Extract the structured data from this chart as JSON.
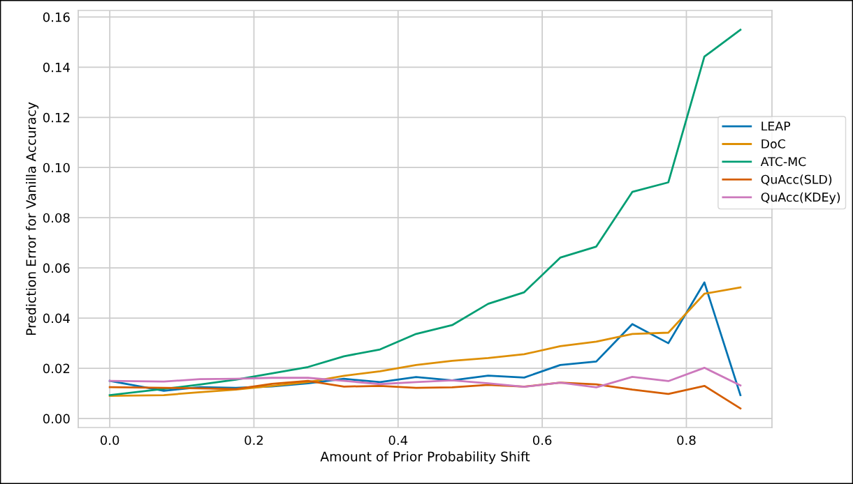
{
  "chart_data": {
    "type": "line",
    "xlabel": "Amount of Prior Probability Shift",
    "ylabel": "Prediction Error for Vanilla Accuracy",
    "x": [
      0.0,
      0.075,
      0.125,
      0.175,
      0.225,
      0.275,
      0.325,
      0.375,
      0.425,
      0.475,
      0.525,
      0.575,
      0.625,
      0.675,
      0.725,
      0.775,
      0.825,
      0.875
    ],
    "series": [
      {
        "name": "LEAP",
        "color": "#0173b2",
        "values": [
          0.015,
          0.011,
          0.0125,
          0.0122,
          0.0128,
          0.014,
          0.0158,
          0.0145,
          0.0165,
          0.0152,
          0.0171,
          0.0163,
          0.0213,
          0.0227,
          0.0376,
          0.03,
          0.0542,
          0.0093
        ]
      },
      {
        "name": "DoC",
        "color": "#de8f05",
        "values": [
          0.009,
          0.0093,
          0.0105,
          0.0115,
          0.013,
          0.0145,
          0.017,
          0.0188,
          0.0213,
          0.023,
          0.0241,
          0.0256,
          0.0288,
          0.0306,
          0.0337,
          0.0342,
          0.0497,
          0.0522
        ]
      },
      {
        "name": "ATC-MC",
        "color": "#029e73",
        "values": [
          0.0093,
          0.0118,
          0.0135,
          0.0155,
          0.018,
          0.0205,
          0.0248,
          0.0275,
          0.0337,
          0.0372,
          0.0457,
          0.0503,
          0.0641,
          0.0685,
          0.0903,
          0.0941,
          0.1442,
          0.1549
        ]
      },
      {
        "name": "QuAcc(SLD)",
        "color": "#d55e00",
        "values": [
          0.0125,
          0.0122,
          0.012,
          0.0117,
          0.0138,
          0.015,
          0.0127,
          0.013,
          0.0122,
          0.0124,
          0.0134,
          0.0127,
          0.0143,
          0.0136,
          0.0115,
          0.0098,
          0.013,
          0.004
        ]
      },
      {
        "name": "QuAcc(KDEy)",
        "color": "#cc78bc",
        "values": [
          0.015,
          0.0147,
          0.0157,
          0.0158,
          0.0162,
          0.0162,
          0.015,
          0.0137,
          0.0145,
          0.0152,
          0.014,
          0.0126,
          0.0143,
          0.0124,
          0.0166,
          0.0149,
          0.0202,
          0.0132
        ]
      }
    ],
    "xlim": [
      -0.04375,
      0.91875
    ],
    "ylim": [
      -0.0036,
      0.1626
    ],
    "xticks": [
      {
        "value": 0.0,
        "label": "0.0"
      },
      {
        "value": 0.2,
        "label": "0.2"
      },
      {
        "value": 0.4,
        "label": "0.4"
      },
      {
        "value": 0.6,
        "label": "0.6"
      },
      {
        "value": 0.8,
        "label": "0.8"
      }
    ],
    "yticks": [
      {
        "value": 0.0,
        "label": "0.00"
      },
      {
        "value": 0.02,
        "label": "0.02"
      },
      {
        "value": 0.04,
        "label": "0.04"
      },
      {
        "value": 0.06,
        "label": "0.06"
      },
      {
        "value": 0.08,
        "label": "0.08"
      },
      {
        "value": 0.1,
        "label": "0.10"
      },
      {
        "value": 0.12,
        "label": "0.12"
      },
      {
        "value": 0.14,
        "label": "0.14"
      },
      {
        "value": 0.16,
        "label": "0.16"
      }
    ],
    "grid": true,
    "legend": "center right",
    "marker": "none",
    "line_style": "solid"
  }
}
